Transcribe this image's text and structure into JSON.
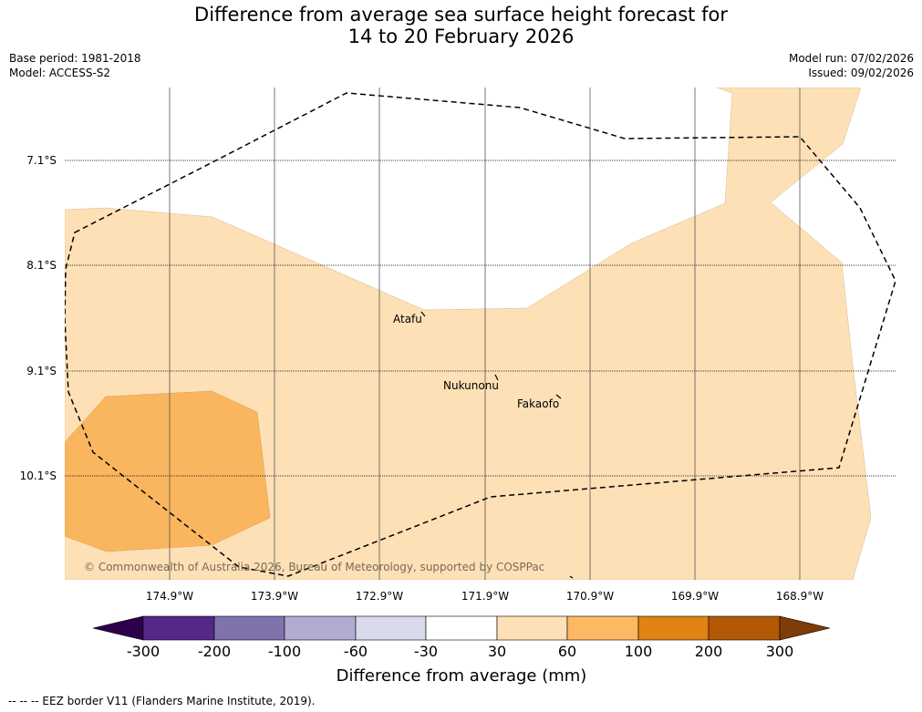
{
  "title": {
    "line1": "Difference from average sea surface height forecast for",
    "line2": "14 to 20 February 2026"
  },
  "meta": {
    "base_period": "Base period: 1981-2018",
    "model": "Model: ACCESS-S2",
    "model_run": "Model run: 07/02/2026",
    "issued": "Issued: 09/02/2026"
  },
  "map": {
    "lat_labels": [
      "7.1°S",
      "8.1°S",
      "9.1°S",
      "10.1°S"
    ],
    "lon_labels": [
      "174.9°W",
      "173.9°W",
      "172.9°W",
      "171.9°W",
      "170.9°W",
      "169.9°W",
      "168.9°W"
    ],
    "places": [
      "Atafu",
      "Nukunonu",
      "Fakaofo"
    ],
    "copyright": "© Commonwealth of Australia 2026, Bureau of Meteorology, supported by COSPPac",
    "colors": {
      "land_30_60": "#fde0b6",
      "band_60_100": "#fab65f",
      "border": "#000000"
    }
  },
  "colorbar": {
    "ticks": [
      "-300",
      "-200",
      "-100",
      "-60",
      "-30",
      "30",
      "60",
      "100",
      "200",
      "300"
    ],
    "colors": [
      "#2d004b",
      "#542788",
      "#8073ac",
      "#b2abd2",
      "#d8daeb",
      "#ffffff",
      "#fee0b6",
      "#fdb863",
      "#e08214",
      "#b35806",
      "#7f3b08"
    ],
    "label": "Difference from average (mm)"
  },
  "footnote": "--  --  -- EEZ border V11 (Flanders Marine Institute, 2019)."
}
